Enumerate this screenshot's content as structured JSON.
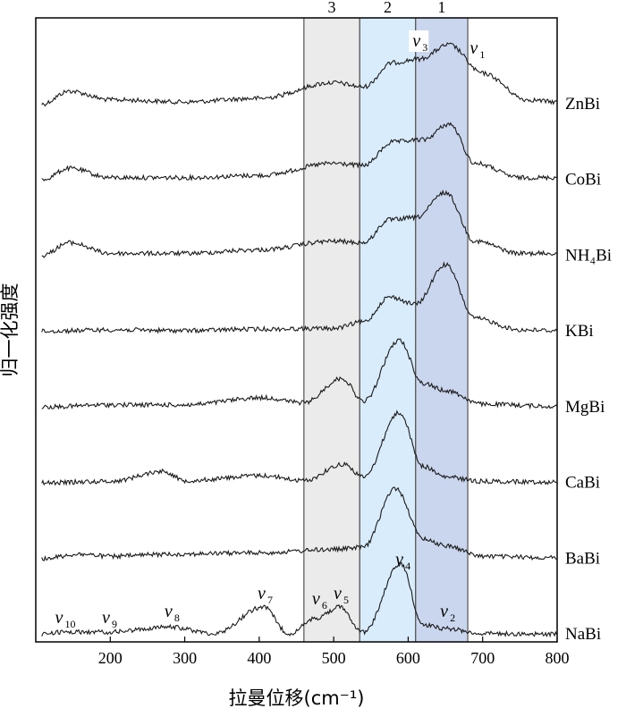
{
  "chart_data": {
    "type": "line",
    "xlabel": "拉曼位移(cm⁻¹)",
    "ylabel": "归一化强度",
    "xlim": [
      100,
      800
    ],
    "xticks": [
      200,
      300,
      400,
      500,
      600,
      700,
      800
    ],
    "grid": false,
    "bands": [
      {
        "label": "3",
        "x": [
          460,
          535
        ],
        "color": "#ebebeb"
      },
      {
        "label": "2",
        "x": [
          535,
          610
        ],
        "color": "#d9ecfb"
      },
      {
        "label": "1",
        "x": [
          610,
          680
        ],
        "color": "#c9d6ee"
      }
    ],
    "mode_labels": [
      {
        "sym": "v",
        "sub": "10",
        "x": 133
      },
      {
        "sym": "v",
        "sub": "9",
        "x": 196
      },
      {
        "sym": "v",
        "sub": "8",
        "x": 280
      },
      {
        "sym": "v",
        "sub": "7",
        "x": 405
      },
      {
        "sym": "v",
        "sub": "6",
        "x": 478
      },
      {
        "sym": "v",
        "sub": "5",
        "x": 507
      },
      {
        "sym": "v",
        "sub": "4",
        "x": 590
      },
      {
        "sym": "v",
        "sub": "2",
        "x": 650
      },
      {
        "sym": "v",
        "sub": "3",
        "x": 613
      },
      {
        "sym": "v",
        "sub": "1",
        "x": 690
      }
    ],
    "series": [
      {
        "name": "ZnBi",
        "points": [
          [
            108,
            0.02
          ],
          [
            145,
            0.2
          ],
          [
            200,
            0.08
          ],
          [
            300,
            0.05
          ],
          [
            400,
            0.1
          ],
          [
            500,
            0.32
          ],
          [
            540,
            0.26
          ],
          [
            580,
            0.6
          ],
          [
            615,
            0.65
          ],
          [
            655,
            0.85
          ],
          [
            700,
            0.45
          ],
          [
            760,
            0.08
          ],
          [
            800,
            0.05
          ]
        ]
      },
      {
        "name": "CoBi",
        "points": [
          [
            108,
            0.02
          ],
          [
            145,
            0.18
          ],
          [
            200,
            0.05
          ],
          [
            300,
            0.05
          ],
          [
            400,
            0.08
          ],
          [
            500,
            0.25
          ],
          [
            540,
            0.22
          ],
          [
            580,
            0.55
          ],
          [
            620,
            0.58
          ],
          [
            655,
            0.8
          ],
          [
            690,
            0.25
          ],
          [
            750,
            0.05
          ],
          [
            800,
            0.05
          ]
        ]
      },
      {
        "name": "NH₄Bi",
        "points": [
          [
            108,
            0.02
          ],
          [
            145,
            0.2
          ],
          [
            200,
            0.05
          ],
          [
            300,
            0.05
          ],
          [
            400,
            0.1
          ],
          [
            500,
            0.22
          ],
          [
            540,
            0.2
          ],
          [
            575,
            0.52
          ],
          [
            610,
            0.55
          ],
          [
            650,
            0.9
          ],
          [
            690,
            0.22
          ],
          [
            750,
            0.05
          ],
          [
            800,
            0.05
          ]
        ]
      },
      {
        "name": "KBi",
        "points": [
          [
            108,
            0.02
          ],
          [
            200,
            0.04
          ],
          [
            300,
            0.03
          ],
          [
            400,
            0.05
          ],
          [
            500,
            0.06
          ],
          [
            540,
            0.15
          ],
          [
            575,
            0.5
          ],
          [
            610,
            0.4
          ],
          [
            650,
            0.95
          ],
          [
            690,
            0.2
          ],
          [
            750,
            0.04
          ],
          [
            800,
            0.03
          ]
        ]
      },
      {
        "name": "MgBi",
        "points": [
          [
            108,
            0.02
          ],
          [
            200,
            0.05
          ],
          [
            300,
            0.05
          ],
          [
            405,
            0.15
          ],
          [
            460,
            0.08
          ],
          [
            511,
            0.42
          ],
          [
            540,
            0.1
          ],
          [
            588,
            0.95
          ],
          [
            620,
            0.35
          ],
          [
            650,
            0.25
          ],
          [
            700,
            0.06
          ],
          [
            800,
            0.03
          ]
        ]
      },
      {
        "name": "CaBi",
        "points": [
          [
            108,
            0.02
          ],
          [
            200,
            0.04
          ],
          [
            272,
            0.18
          ],
          [
            300,
            0.05
          ],
          [
            405,
            0.12
          ],
          [
            460,
            0.05
          ],
          [
            513,
            0.28
          ],
          [
            540,
            0.1
          ],
          [
            588,
            1.0
          ],
          [
            620,
            0.25
          ],
          [
            650,
            0.1
          ],
          [
            700,
            0.04
          ],
          [
            800,
            0.03
          ]
        ]
      },
      {
        "name": "BaBi",
        "points": [
          [
            108,
            0.02
          ],
          [
            160,
            0.08
          ],
          [
            200,
            0.05
          ],
          [
            280,
            0.08
          ],
          [
            400,
            0.1
          ],
          [
            507,
            0.15
          ],
          [
            540,
            0.18
          ],
          [
            583,
            1.0
          ],
          [
            620,
            0.3
          ],
          [
            650,
            0.2
          ],
          [
            700,
            0.05
          ],
          [
            800,
            0.03
          ]
        ]
      },
      {
        "name": "NaBi",
        "points": [
          [
            108,
            0.02
          ],
          [
            133,
            0.05
          ],
          [
            196,
            0.05
          ],
          [
            280,
            0.12
          ],
          [
            340,
            0.03
          ],
          [
            405,
            0.4
          ],
          [
            440,
            0.03
          ],
          [
            478,
            0.25
          ],
          [
            507,
            0.4
          ],
          [
            540,
            0.05
          ],
          [
            590,
            1.0
          ],
          [
            620,
            0.15
          ],
          [
            650,
            0.1
          ],
          [
            700,
            0.03
          ],
          [
            800,
            0.02
          ]
        ]
      }
    ]
  }
}
